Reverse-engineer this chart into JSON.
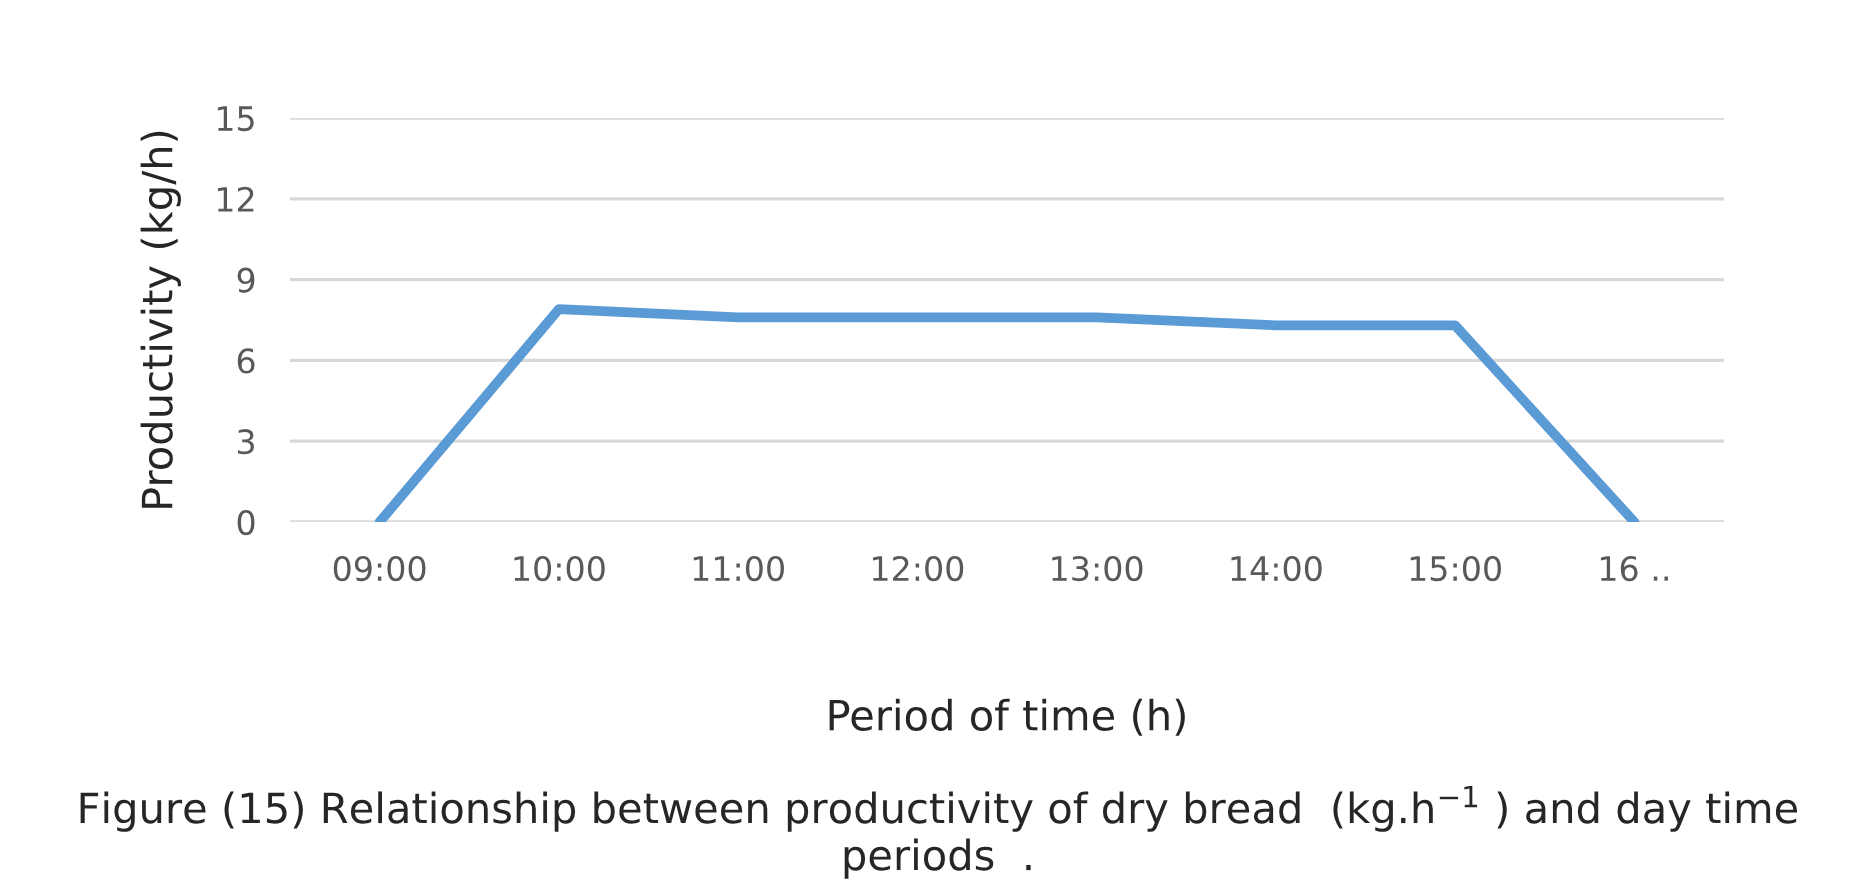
{
  "chart_data": {
    "type": "line",
    "xlabel": "Period of time (h)",
    "ylabel": "Productivity (kg/h)",
    "categories": [
      "09:00",
      "10:00",
      "11:00",
      "12:00",
      "13:00",
      "14:00",
      "15:00",
      "16 .."
    ],
    "series": [
      {
        "color": "#5b9bd5",
        "values": [
          0,
          7.9,
          7.6,
          7.6,
          7.6,
          7.3,
          7.3,
          0
        ]
      }
    ],
    "ylim": [
      0,
      15
    ],
    "yticks": [
      0,
      3,
      6,
      9,
      12,
      15
    ],
    "grid": "y",
    "legend": false,
    "marker": "none",
    "line_style": "solid",
    "annotations": [
      "Figure (15) Relationship between productivity of dry bread  (kg.h$^{−1}$ ) and day time periods  ."
    ]
  }
}
